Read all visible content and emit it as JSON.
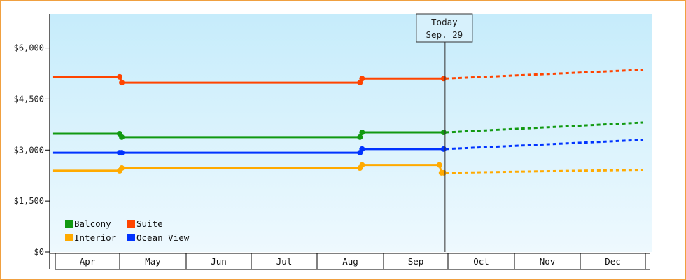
{
  "chart_data": {
    "type": "line",
    "y_axis": {
      "min": 0,
      "max": 7000,
      "ticks": [
        0,
        1500,
        3000,
        4500,
        6000
      ],
      "tick_labels": [
        "$0",
        "$1,500",
        "$3,000",
        "$4,500",
        "$6,000"
      ]
    },
    "x_axis": {
      "range": [
        "Mar 31",
        "Dec 31"
      ],
      "months": [
        {
          "label": "Apr",
          "start": "2024-04-01",
          "end": "2024-05-01"
        },
        {
          "label": "May",
          "start": "2024-05-01",
          "end": "2024-06-01"
        },
        {
          "label": "Jun",
          "start": "2024-06-01",
          "end": "2024-07-01"
        },
        {
          "label": "Jul",
          "start": "2024-07-01",
          "end": "2024-08-01"
        },
        {
          "label": "Aug",
          "start": "2024-08-01",
          "end": "2024-09-01"
        },
        {
          "label": "Sep",
          "start": "2024-09-01",
          "end": "2024-10-01"
        },
        {
          "label": "Oct",
          "start": "2024-10-01",
          "end": "2024-11-01"
        },
        {
          "label": "Nov",
          "start": "2024-11-01",
          "end": "2024-12-01"
        },
        {
          "label": "Dec",
          "start": "2024-12-01",
          "end": "2025-01-01"
        }
      ]
    },
    "today": {
      "date": "2024-09-29",
      "label_line1": "Today",
      "label_line2": "Sep. 29"
    },
    "legend": {
      "placement": "bottom-left"
    },
    "series": [
      {
        "name": "Suite",
        "color": "#ff4400",
        "history": [
          {
            "date": "2024-03-31",
            "value": 5150
          },
          {
            "date": "2024-05-01",
            "value": 5150
          },
          {
            "date": "2024-05-02",
            "value": 4980
          },
          {
            "date": "2024-08-21",
            "value": 4980
          },
          {
            "date": "2024-08-22",
            "value": 5100
          },
          {
            "date": "2024-09-29",
            "value": 5100
          }
        ],
        "forecast": [
          {
            "date": "2024-09-30",
            "value": 5100
          },
          {
            "date": "2024-12-31",
            "value": 5360
          }
        ]
      },
      {
        "name": "Balcony",
        "color": "#119911",
        "history": [
          {
            "date": "2024-03-31",
            "value": 3480
          },
          {
            "date": "2024-05-01",
            "value": 3480
          },
          {
            "date": "2024-05-02",
            "value": 3380
          },
          {
            "date": "2024-08-21",
            "value": 3380
          },
          {
            "date": "2024-08-22",
            "value": 3520
          },
          {
            "date": "2024-09-29",
            "value": 3520
          }
        ],
        "forecast": [
          {
            "date": "2024-09-30",
            "value": 3520
          },
          {
            "date": "2024-12-31",
            "value": 3810
          }
        ]
      },
      {
        "name": "Ocean View",
        "color": "#0033ff",
        "history": [
          {
            "date": "2024-03-31",
            "value": 2920
          },
          {
            "date": "2024-05-01",
            "value": 2920
          },
          {
            "date": "2024-05-02",
            "value": 2920
          },
          {
            "date": "2024-08-21",
            "value": 2920
          },
          {
            "date": "2024-08-22",
            "value": 3030
          },
          {
            "date": "2024-09-29",
            "value": 3030
          }
        ],
        "forecast": [
          {
            "date": "2024-09-30",
            "value": 3030
          },
          {
            "date": "2024-12-31",
            "value": 3300
          }
        ]
      },
      {
        "name": "Interior",
        "color": "#ffaa00",
        "history": [
          {
            "date": "2024-03-31",
            "value": 2390
          },
          {
            "date": "2024-05-01",
            "value": 2390
          },
          {
            "date": "2024-05-02",
            "value": 2470
          },
          {
            "date": "2024-08-21",
            "value": 2470
          },
          {
            "date": "2024-08-22",
            "value": 2560
          },
          {
            "date": "2024-09-27",
            "value": 2560
          },
          {
            "date": "2024-09-28",
            "value": 2330
          },
          {
            "date": "2024-09-29",
            "value": 2330
          }
        ],
        "forecast": [
          {
            "date": "2024-09-30",
            "value": 2330
          },
          {
            "date": "2024-12-31",
            "value": 2420
          }
        ]
      }
    ],
    "legend_order": [
      "Balcony",
      "Suite",
      "Interior",
      "Ocean View"
    ]
  }
}
